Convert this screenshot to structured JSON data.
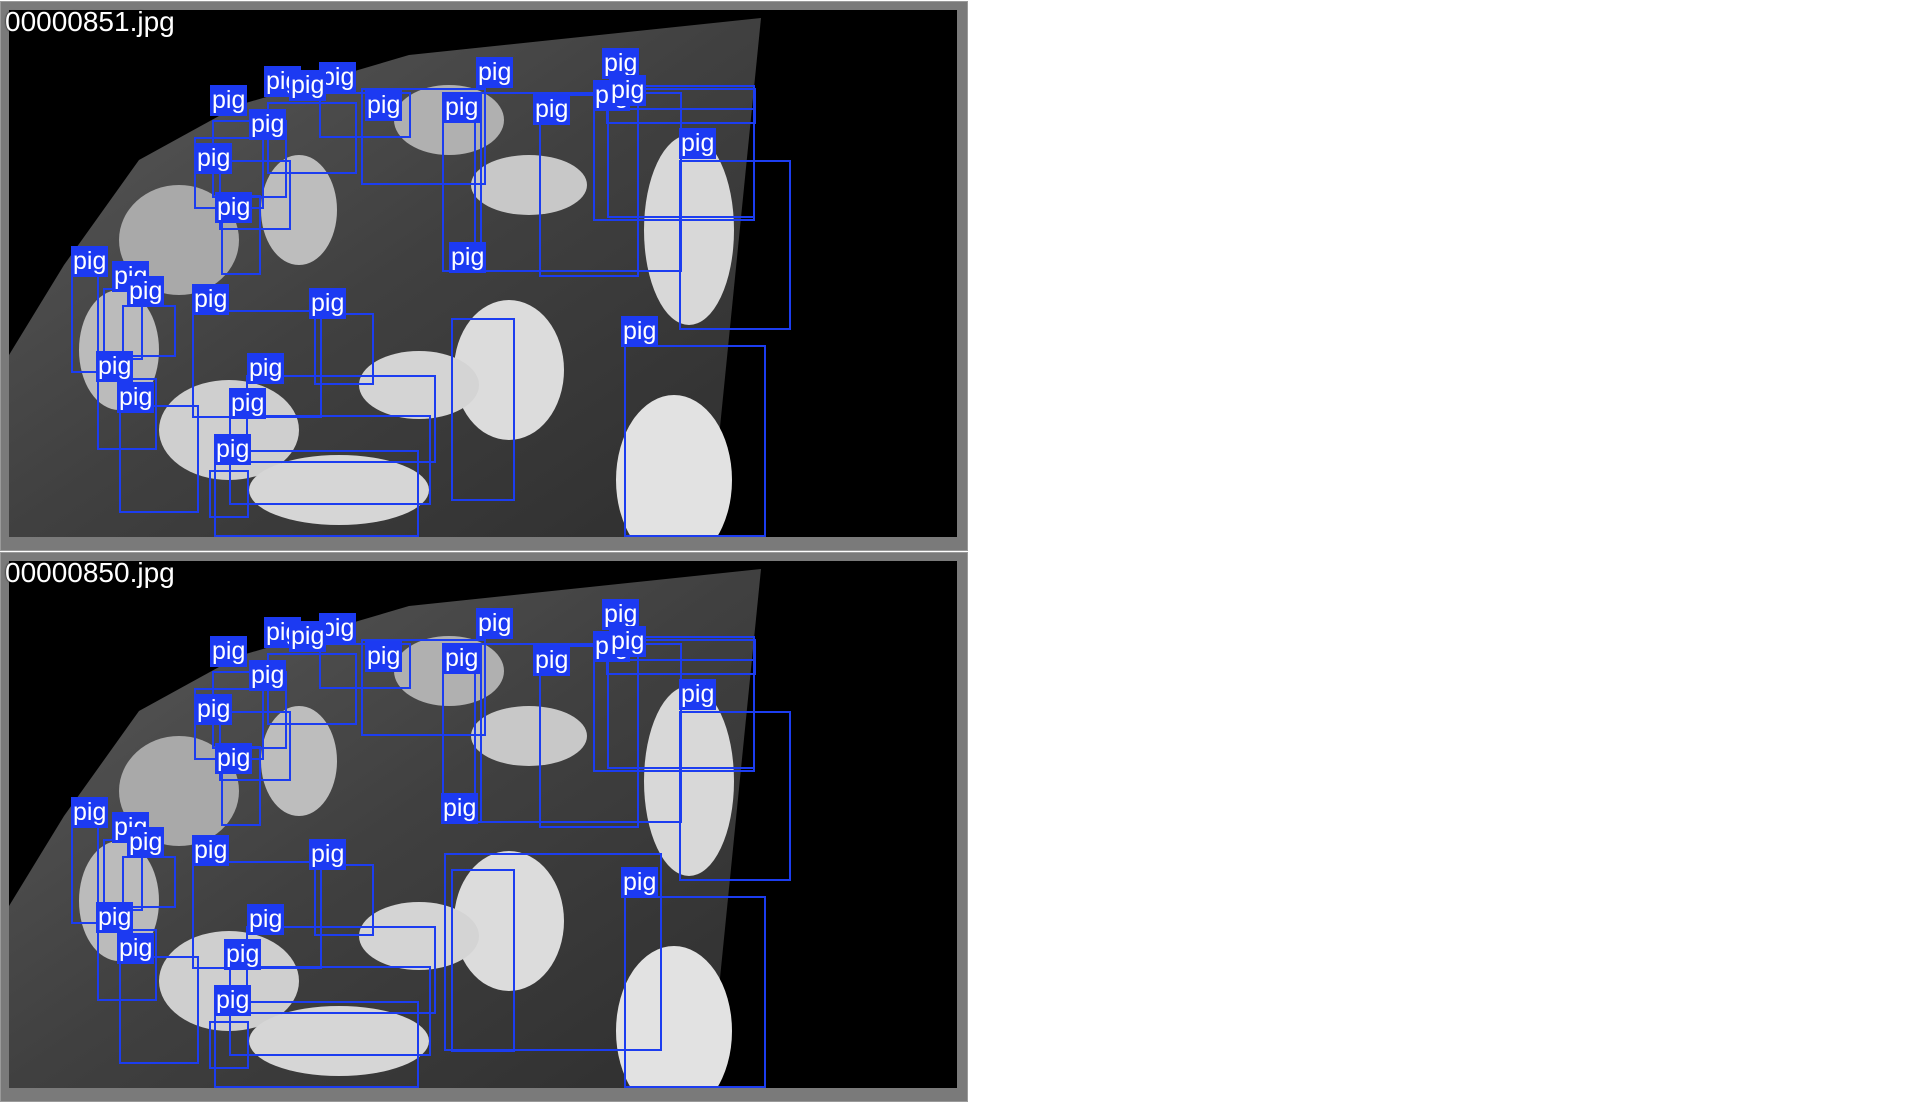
{
  "panels": [
    {
      "filename": "00000851.jpg",
      "detections": [
        {
          "label": "pig"
        },
        {
          "label": "pig"
        },
        {
          "label": "pig"
        },
        {
          "label": "pig"
        },
        {
          "label": "pig"
        },
        {
          "label": "pig"
        },
        {
          "label": "pig"
        },
        {
          "label": "pig"
        },
        {
          "label": "pig"
        },
        {
          "label": "pig"
        },
        {
          "label": "pig"
        },
        {
          "label": "pig"
        },
        {
          "label": "pig"
        },
        {
          "label": "pig"
        },
        {
          "label": "pig"
        },
        {
          "label": "pig"
        },
        {
          "label": "pig"
        },
        {
          "label": "pig"
        },
        {
          "label": "pig"
        },
        {
          "label": "pig"
        },
        {
          "label": "pig"
        },
        {
          "label": "pig"
        },
        {
          "label": "pig"
        },
        {
          "label": "pig"
        },
        {
          "label": "pig"
        },
        {
          "label": "pig"
        },
        {
          "label": "pig"
        }
      ]
    },
    {
      "filename": "00000850.jpg",
      "detections": [
        {
          "label": "pig"
        },
        {
          "label": "pig"
        },
        {
          "label": "pig"
        },
        {
          "label": "pig"
        },
        {
          "label": "pig"
        },
        {
          "label": "pig"
        },
        {
          "label": "pig"
        },
        {
          "label": "pig"
        },
        {
          "label": "pig"
        },
        {
          "label": "pig"
        },
        {
          "label": "pig"
        },
        {
          "label": "pig"
        },
        {
          "label": "pig"
        },
        {
          "label": "pig"
        },
        {
          "label": "pig"
        },
        {
          "label": "pig"
        },
        {
          "label": "pig"
        },
        {
          "label": "pig"
        },
        {
          "label": "pig"
        },
        {
          "label": "pig"
        },
        {
          "label": "pig"
        },
        {
          "label": "pig"
        },
        {
          "label": "pig"
        },
        {
          "label": "pig"
        },
        {
          "label": "pig"
        },
        {
          "label": "pig"
        },
        {
          "label": "pig"
        }
      ]
    }
  ],
  "colors": {
    "box": "#1c3df0",
    "label_bg": "#1c3af2",
    "label_text": "#ffffff",
    "panel_border": "#7a7a7a"
  }
}
